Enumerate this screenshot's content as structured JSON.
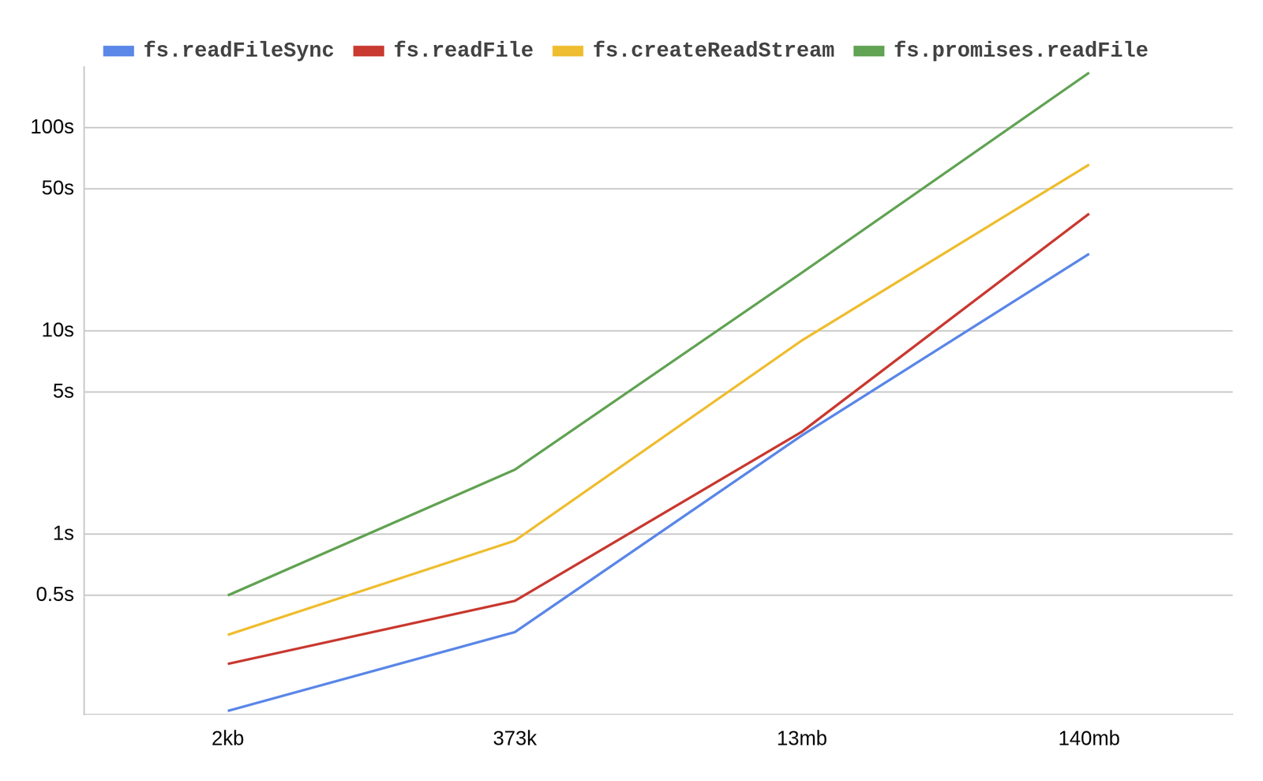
{
  "chart_data": {
    "type": "line",
    "categories": [
      "2kb",
      "373k",
      "13mb",
      "140mb"
    ],
    "series": [
      {
        "name": "fs.readFileSync",
        "color": "#5b87e8",
        "values": [
          0.135,
          0.33,
          3.07,
          24
        ]
      },
      {
        "name": "fs.readFile",
        "color": "#c93a31",
        "values": [
          0.23,
          0.47,
          3.2,
          37.8
        ]
      },
      {
        "name": "fs.createReadStream",
        "color": "#efbd30",
        "values": [
          0.32,
          0.93,
          9.0,
          66
        ]
      },
      {
        "name": "fs.promises.readFile",
        "color": "#62a354",
        "values": [
          0.5,
          2.08,
          19.4,
          187
        ]
      }
    ],
    "ylim": [
      0.13,
      200
    ],
    "yticks": [
      {
        "value": 0.5,
        "label": "0.5s"
      },
      {
        "value": 1,
        "label": "1s"
      },
      {
        "value": 5,
        "label": "5s"
      },
      {
        "value": 10,
        "label": "10s"
      },
      {
        "value": 50,
        "label": "50s"
      },
      {
        "value": 100,
        "label": "100s"
      }
    ],
    "log": "y",
    "grid": true,
    "legend": "top"
  }
}
